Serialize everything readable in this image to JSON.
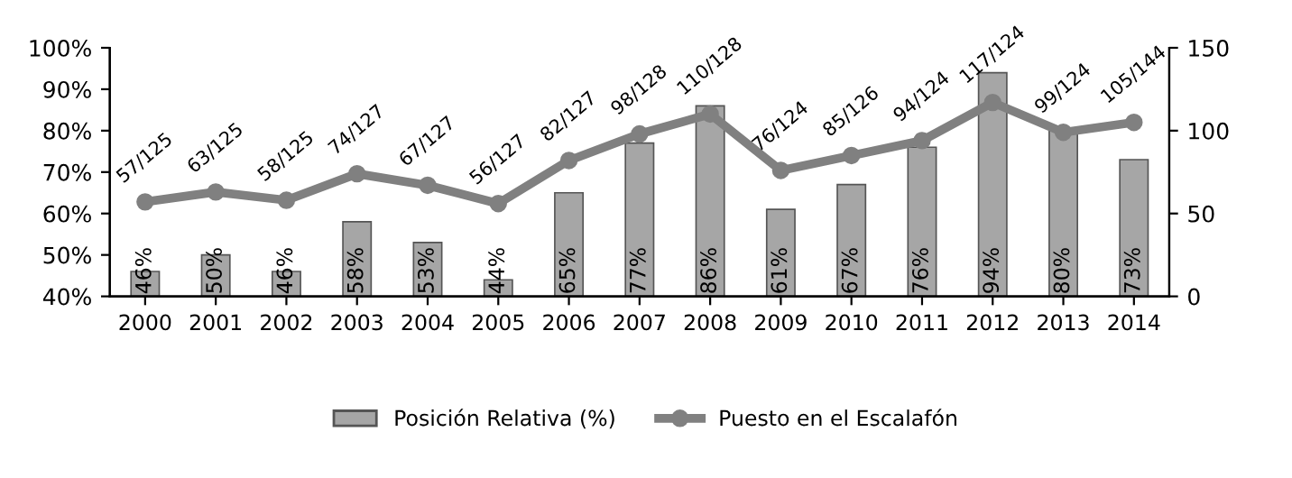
{
  "chart_data": {
    "type": "bar",
    "categories": [
      "2000",
      "2001",
      "2002",
      "2003",
      "2004",
      "2005",
      "2006",
      "2007",
      "2008",
      "2009",
      "2010",
      "2011",
      "2012",
      "2013",
      "2014"
    ],
    "series": [
      {
        "name": "Posición Relativa (%)",
        "color": "#a6a6a6",
        "values": [
          46,
          50,
          46,
          58,
          53,
          44,
          65,
          77,
          86,
          61,
          67,
          76,
          94,
          80,
          73
        ],
        "value_labels": [
          "46%",
          "50%",
          "46%",
          "58%",
          "53%",
          "44%",
          "65%",
          "77%",
          "86%",
          "61%",
          "67%",
          "76%",
          "94%",
          "80%",
          "73%"
        ]
      },
      {
        "name": "Puesto en el Escalafón",
        "type": "line",
        "axis": "y2",
        "color": "#808080",
        "marker": "circle",
        "values": [
          57,
          63,
          58,
          74,
          67,
          56,
          82,
          98,
          110,
          76,
          85,
          94,
          117,
          99,
          105
        ],
        "value_labels": [
          "57/125",
          "63/125",
          "58/125",
          "74/127",
          "67/127",
          "56/127",
          "82/127",
          "98/128",
          "110/128",
          "76/124",
          "85/126",
          "94/124",
          "117/124",
          "99/124",
          "105/144"
        ]
      }
    ],
    "ylim": [
      40,
      100
    ],
    "yticks": [
      {
        "value": 40,
        "label": "40%"
      },
      {
        "value": 50,
        "label": "50%"
      },
      {
        "value": 60,
        "label": "60%"
      },
      {
        "value": 70,
        "label": "70%"
      },
      {
        "value": 80,
        "label": "80%"
      },
      {
        "value": 90,
        "label": "90%"
      },
      {
        "value": 100,
        "label": "100%"
      }
    ],
    "y2lim": [
      0,
      150
    ],
    "y2ticks": [
      0,
      50,
      100,
      150
    ],
    "grid": false,
    "legend": "bottom"
  }
}
